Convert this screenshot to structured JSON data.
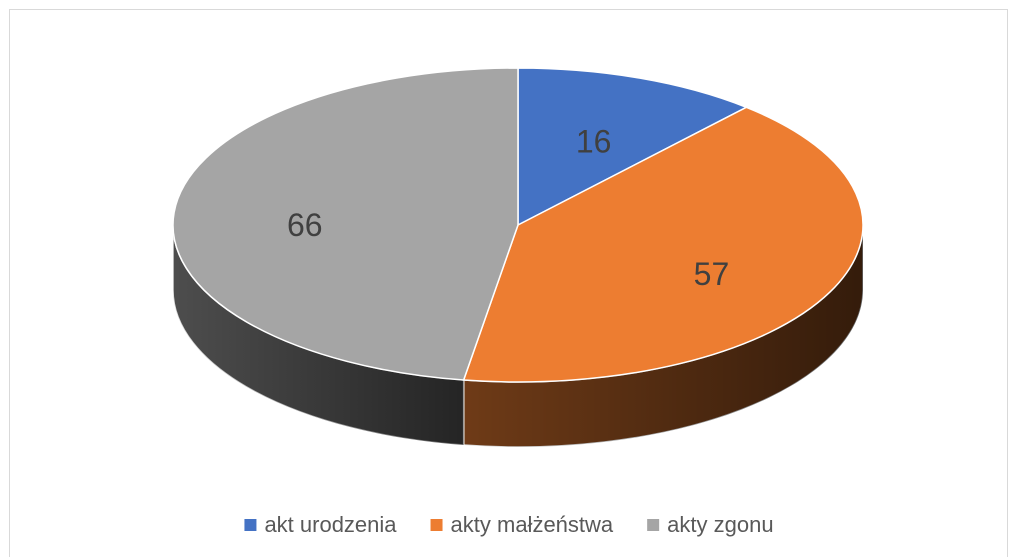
{
  "chart_data": {
    "type": "pie",
    "categories": [
      "akt urodzenia",
      "akty małżeństwa",
      "akty zgonu"
    ],
    "values": [
      16,
      57,
      66
    ],
    "colors": [
      "#4472c4",
      "#ed7d31",
      "#a5a5a5"
    ],
    "legend": "bottom"
  }
}
